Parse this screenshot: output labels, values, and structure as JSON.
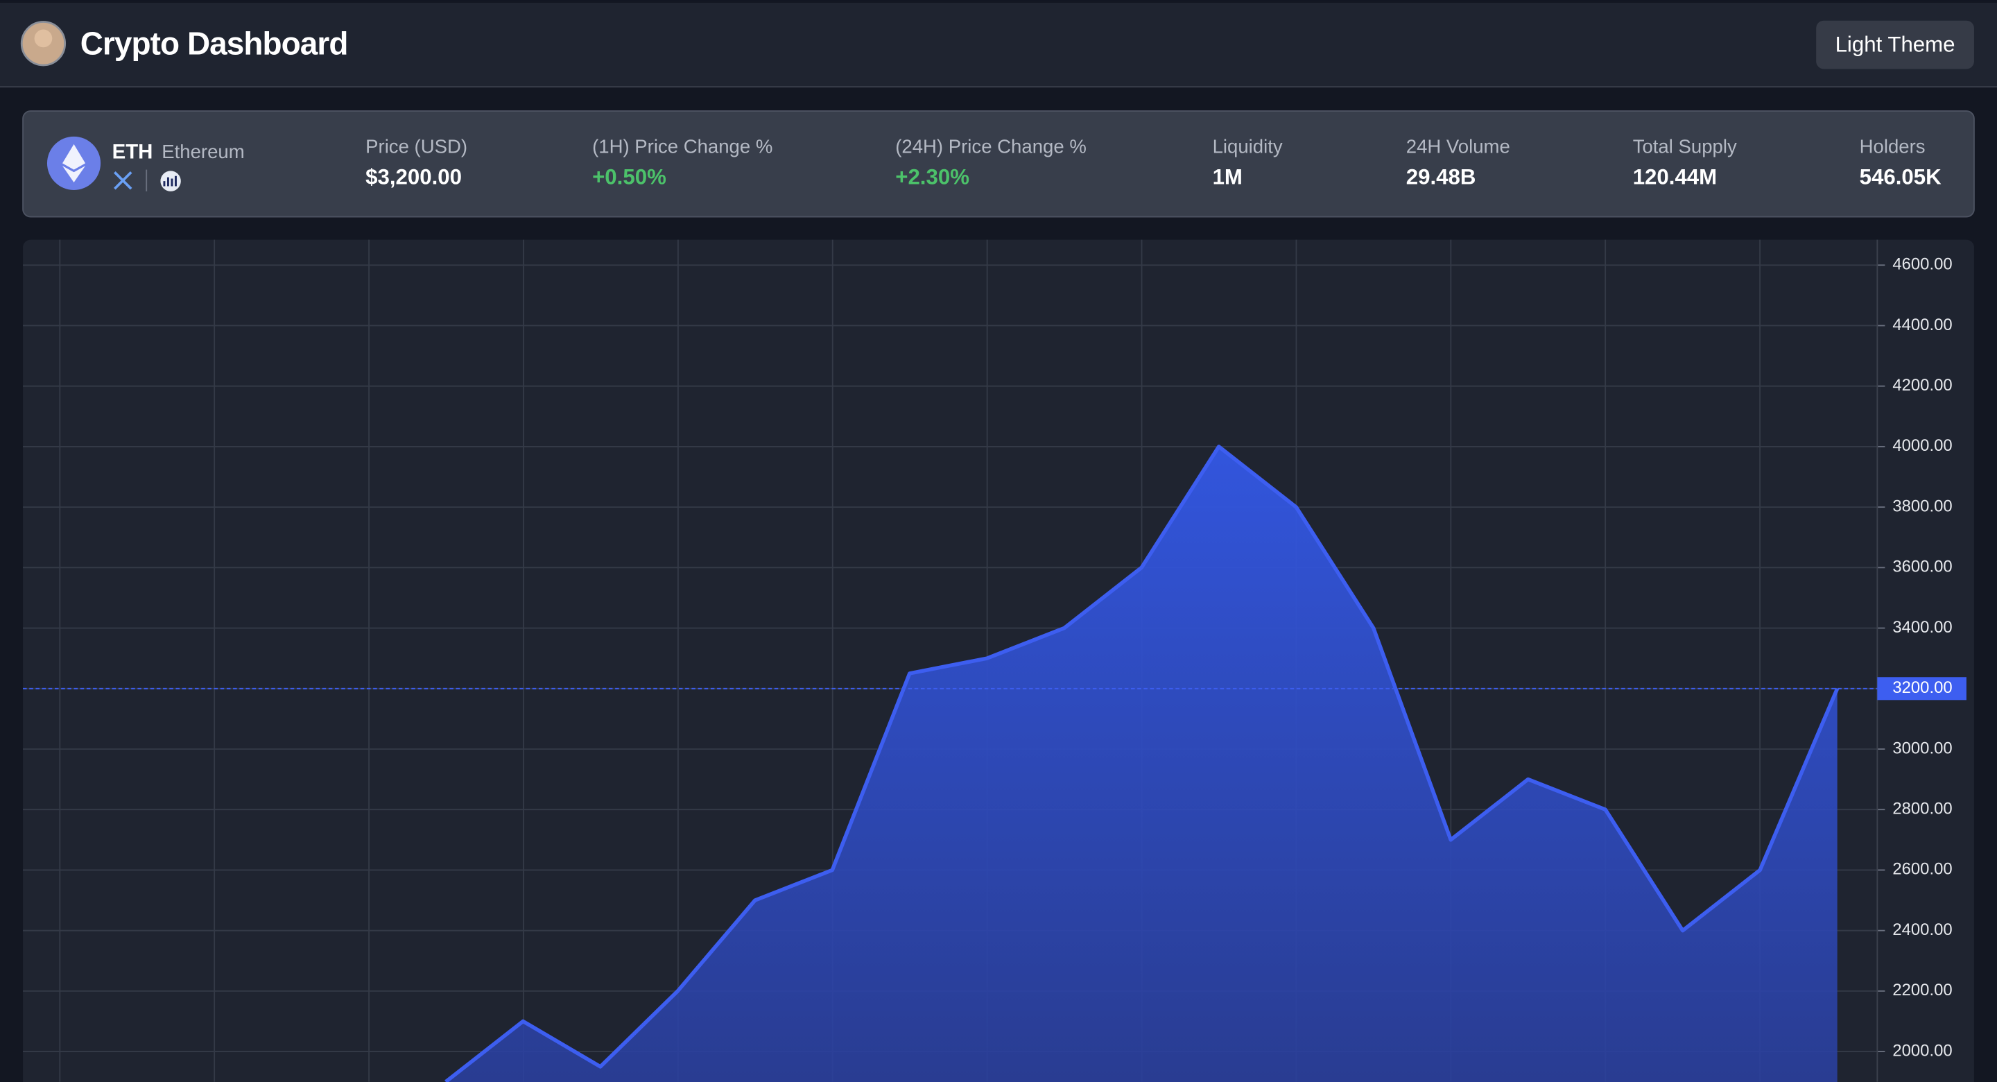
{
  "header": {
    "title": "Crypto Dashboard",
    "theme_button": "Light Theme"
  },
  "token": {
    "symbol": "ETH",
    "name": "Ethereum"
  },
  "stats": [
    {
      "label": "Price (USD)",
      "value": "$3,200.00"
    },
    {
      "label": "(1H) Price Change %",
      "value": "+0.50%"
    },
    {
      "label": "(24H) Price Change %",
      "value": "+2.30%"
    },
    {
      "label": "Liquidity",
      "value": "1M"
    },
    {
      "label": "24H Volume",
      "value": "29.48B"
    },
    {
      "label": "Total Supply",
      "value": "120.44M"
    },
    {
      "label": "Holders",
      "value": "546.05K"
    }
  ],
  "chart_data": {
    "type": "area",
    "categories": [
      null,
      null,
      null,
      null,
      null,
      null,
      null,
      null,
      null,
      null,
      null,
      null,
      null,
      null,
      null,
      null,
      null,
      null,
      null
    ],
    "series": [
      {
        "name": "ETH",
        "color": "#3d5ef0",
        "values": [
          1900,
          2100,
          1950,
          2200,
          2500,
          2600,
          3250,
          3300,
          3400,
          3600,
          4000,
          3800,
          3400,
          2700,
          2900,
          2800,
          2400,
          2600,
          3200
        ]
      }
    ],
    "ylim": [
      1900,
      4684
    ],
    "yticks": [
      {
        "value": 2000,
        "label": "2000.00"
      },
      {
        "value": 2200,
        "label": "2200.00"
      },
      {
        "value": 2400,
        "label": "2400.00"
      },
      {
        "value": 2600,
        "label": "2600.00"
      },
      {
        "value": 2800,
        "label": "2800.00"
      },
      {
        "value": 3000,
        "label": "3000.00"
      },
      {
        "value": 3200,
        "label": "3200.00"
      },
      {
        "value": 3400,
        "label": "3400.00"
      },
      {
        "value": 3600,
        "label": "3600.00"
      },
      {
        "value": 3800,
        "label": "3800.00"
      },
      {
        "value": 4000,
        "label": "4000.00"
      },
      {
        "value": 4200,
        "label": "4200.00"
      },
      {
        "value": 4400,
        "label": "4400.00"
      },
      {
        "value": 4600,
        "label": "4600.00"
      }
    ],
    "price_line": {
      "value": 3200,
      "label": "3200.00"
    },
    "grid": true
  }
}
